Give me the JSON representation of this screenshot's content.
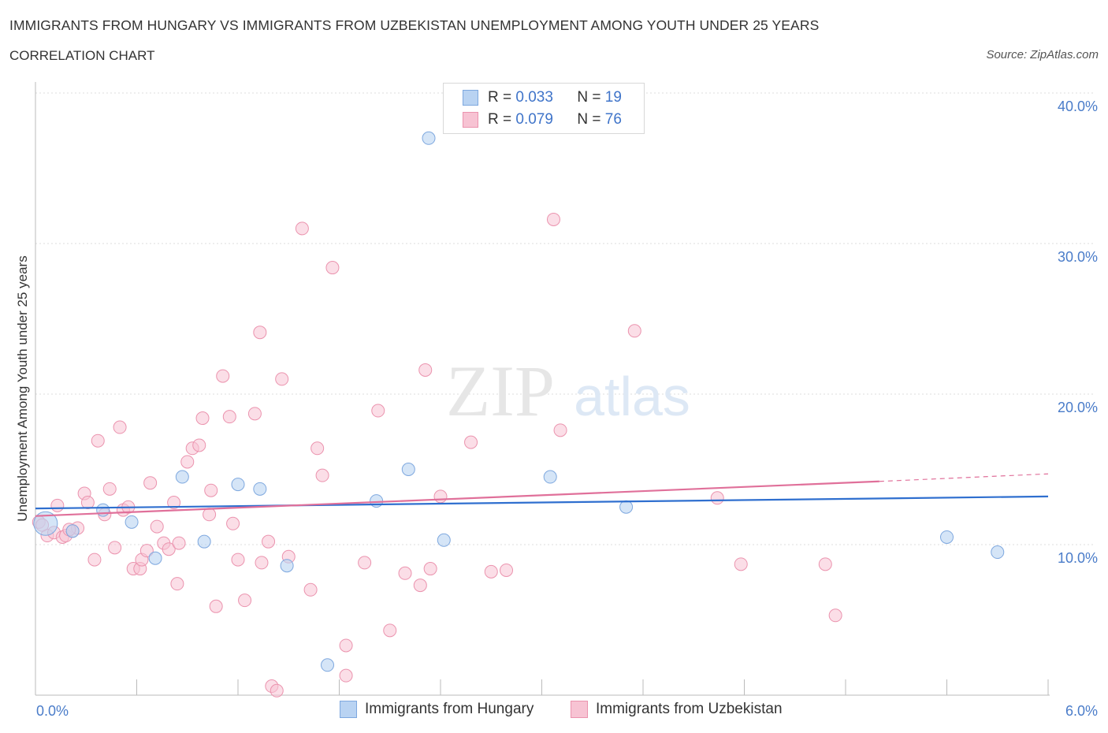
{
  "header": {
    "title": "IMMIGRANTS FROM HUNGARY VS IMMIGRANTS FROM UZBEKISTAN UNEMPLOYMENT AMONG YOUTH UNDER 25 YEARS",
    "subtitle": "CORRELATION CHART",
    "source": "Source: ZipAtlas.com"
  },
  "legend": {
    "hungary": {
      "r_label": "R = ",
      "r_value": "0.033",
      "n_label": "N = ",
      "n_value": "19",
      "name": "Immigrants from Hungary"
    },
    "uzbekistan": {
      "r_label": "R = ",
      "r_value": "0.079",
      "n_label": "N = ",
      "n_value": "76",
      "name": "Immigrants from Uzbekistan"
    }
  },
  "watermark": {
    "zip": "ZIP",
    "atlas": "atlas"
  },
  "colors": {
    "hungary_fill": "#b9d3f2",
    "hungary_stroke": "#7ea8df",
    "hungary_line": "#2f6fcf",
    "uzbekistan_fill": "#f7c3d3",
    "uzbekistan_stroke": "#eb93ae",
    "uzbekistan_line": "#e0709a",
    "tick_text": "#4a7cc9"
  },
  "chart_data": {
    "type": "scatter",
    "title": "IMMIGRANTS FROM HUNGARY VS IMMIGRANTS FROM UZBEKISTAN UNEMPLOYMENT AMONG YOUTH UNDER 25 YEARS",
    "xlabel": "",
    "ylabel": "Unemployment Among Youth under 25 years",
    "xlim": [
      0,
      6
    ],
    "ylim": [
      0,
      40
    ],
    "x_tick_labels": [
      "0.0%",
      "6.0%"
    ],
    "y_ticks": [
      10,
      20,
      30,
      40
    ],
    "y_tick_labels": [
      "10.0%",
      "20.0%",
      "30.0%",
      "40.0%"
    ],
    "grid": true,
    "series": [
      {
        "name": "Immigrants from Hungary",
        "R": 0.033,
        "N": 19,
        "trend": {
          "x": [
            0,
            6
          ],
          "y": [
            12.4,
            13.2
          ],
          "extrapolated_from": null
        },
        "points": [
          {
            "x": 0.06,
            "y": 11.4,
            "big": true
          },
          {
            "x": 0.22,
            "y": 10.9
          },
          {
            "x": 0.4,
            "y": 12.3
          },
          {
            "x": 0.57,
            "y": 11.5
          },
          {
            "x": 0.71,
            "y": 9.1
          },
          {
            "x": 0.87,
            "y": 14.5
          },
          {
            "x": 1.0,
            "y": 10.2
          },
          {
            "x": 1.2,
            "y": 14.0
          },
          {
            "x": 1.33,
            "y": 13.7
          },
          {
            "x": 1.49,
            "y": 8.6
          },
          {
            "x": 1.73,
            "y": 2.0
          },
          {
            "x": 2.02,
            "y": 12.9
          },
          {
            "x": 2.21,
            "y": 15.0
          },
          {
            "x": 2.33,
            "y": 37.0
          },
          {
            "x": 2.42,
            "y": 10.3
          },
          {
            "x": 3.05,
            "y": 14.5
          },
          {
            "x": 3.5,
            "y": 12.5
          },
          {
            "x": 5.4,
            "y": 10.5
          },
          {
            "x": 5.7,
            "y": 9.5
          }
        ]
      },
      {
        "name": "Immigrants from Uzbekistan",
        "R": 0.079,
        "N": 76,
        "trend": {
          "x": [
            0,
            5.0
          ],
          "y": [
            11.9,
            14.2
          ],
          "dashed_to": [
            6,
            14.7
          ]
        },
        "points": [
          {
            "x": 0.02,
            "y": 11.5
          },
          {
            "x": 0.07,
            "y": 10.6
          },
          {
            "x": 0.11,
            "y": 10.8
          },
          {
            "x": 0.13,
            "y": 12.6
          },
          {
            "x": 0.16,
            "y": 10.5
          },
          {
            "x": 0.18,
            "y": 10.6
          },
          {
            "x": 0.22,
            "y": 10.9
          },
          {
            "x": 0.25,
            "y": 11.1
          },
          {
            "x": 0.29,
            "y": 13.4
          },
          {
            "x": 0.31,
            "y": 12.8
          },
          {
            "x": 0.35,
            "y": 9.0
          },
          {
            "x": 0.37,
            "y": 16.9
          },
          {
            "x": 0.41,
            "y": 12.0
          },
          {
            "x": 0.44,
            "y": 13.7
          },
          {
            "x": 0.47,
            "y": 9.8
          },
          {
            "x": 0.5,
            "y": 17.8
          },
          {
            "x": 0.52,
            "y": 12.3
          },
          {
            "x": 0.55,
            "y": 12.5
          },
          {
            "x": 0.58,
            "y": 8.4
          },
          {
            "x": 0.62,
            "y": 8.4
          },
          {
            "x": 0.63,
            "y": 9.0
          },
          {
            "x": 0.66,
            "y": 9.6
          },
          {
            "x": 0.68,
            "y": 14.1
          },
          {
            "x": 0.72,
            "y": 11.2
          },
          {
            "x": 0.76,
            "y": 10.1
          },
          {
            "x": 0.79,
            "y": 9.7
          },
          {
            "x": 0.82,
            "y": 12.8
          },
          {
            "x": 0.84,
            "y": 7.4
          },
          {
            "x": 0.9,
            "y": 15.5
          },
          {
            "x": 0.93,
            "y": 16.4
          },
          {
            "x": 0.97,
            "y": 16.6
          },
          {
            "x": 0.99,
            "y": 18.4
          },
          {
            "x": 1.03,
            "y": 12.0
          },
          {
            "x": 1.04,
            "y": 13.6
          },
          {
            "x": 1.07,
            "y": 5.9
          },
          {
            "x": 1.11,
            "y": 21.2
          },
          {
            "x": 1.15,
            "y": 18.5
          },
          {
            "x": 1.17,
            "y": 11.4
          },
          {
            "x": 1.2,
            "y": 9.0
          },
          {
            "x": 1.24,
            "y": 6.3
          },
          {
            "x": 1.3,
            "y": 18.7
          },
          {
            "x": 1.33,
            "y": 24.1
          },
          {
            "x": 1.34,
            "y": 8.8
          },
          {
            "x": 1.38,
            "y": 10.2
          },
          {
            "x": 1.4,
            "y": 0.6
          },
          {
            "x": 1.43,
            "y": 0.3
          },
          {
            "x": 1.46,
            "y": 21.0
          },
          {
            "x": 1.5,
            "y": 9.2
          },
          {
            "x": 1.58,
            "y": 31.0
          },
          {
            "x": 1.63,
            "y": 7.0
          },
          {
            "x": 1.67,
            "y": 16.4
          },
          {
            "x": 1.7,
            "y": 14.6
          },
          {
            "x": 1.76,
            "y": 28.4
          },
          {
            "x": 1.84,
            "y": 3.3
          },
          {
            "x": 1.84,
            "y": 1.3
          },
          {
            "x": 1.95,
            "y": 8.8
          },
          {
            "x": 2.03,
            "y": 18.9
          },
          {
            "x": 2.1,
            "y": 4.3
          },
          {
            "x": 2.19,
            "y": 8.1
          },
          {
            "x": 2.28,
            "y": 7.3
          },
          {
            "x": 2.31,
            "y": 21.6
          },
          {
            "x": 2.34,
            "y": 8.4
          },
          {
            "x": 2.4,
            "y": 13.2
          },
          {
            "x": 2.58,
            "y": 16.8
          },
          {
            "x": 2.7,
            "y": 8.2
          },
          {
            "x": 2.79,
            "y": 8.3
          },
          {
            "x": 3.07,
            "y": 31.6
          },
          {
            "x": 3.11,
            "y": 17.6
          },
          {
            "x": 3.55,
            "y": 24.2
          },
          {
            "x": 4.04,
            "y": 13.1
          },
          {
            "x": 4.18,
            "y": 8.7
          },
          {
            "x": 4.68,
            "y": 8.7
          },
          {
            "x": 4.74,
            "y": 5.3
          },
          {
            "x": 0.04,
            "y": 11.3
          },
          {
            "x": 0.2,
            "y": 11.0
          },
          {
            "x": 0.85,
            "y": 10.1
          }
        ]
      }
    ]
  }
}
